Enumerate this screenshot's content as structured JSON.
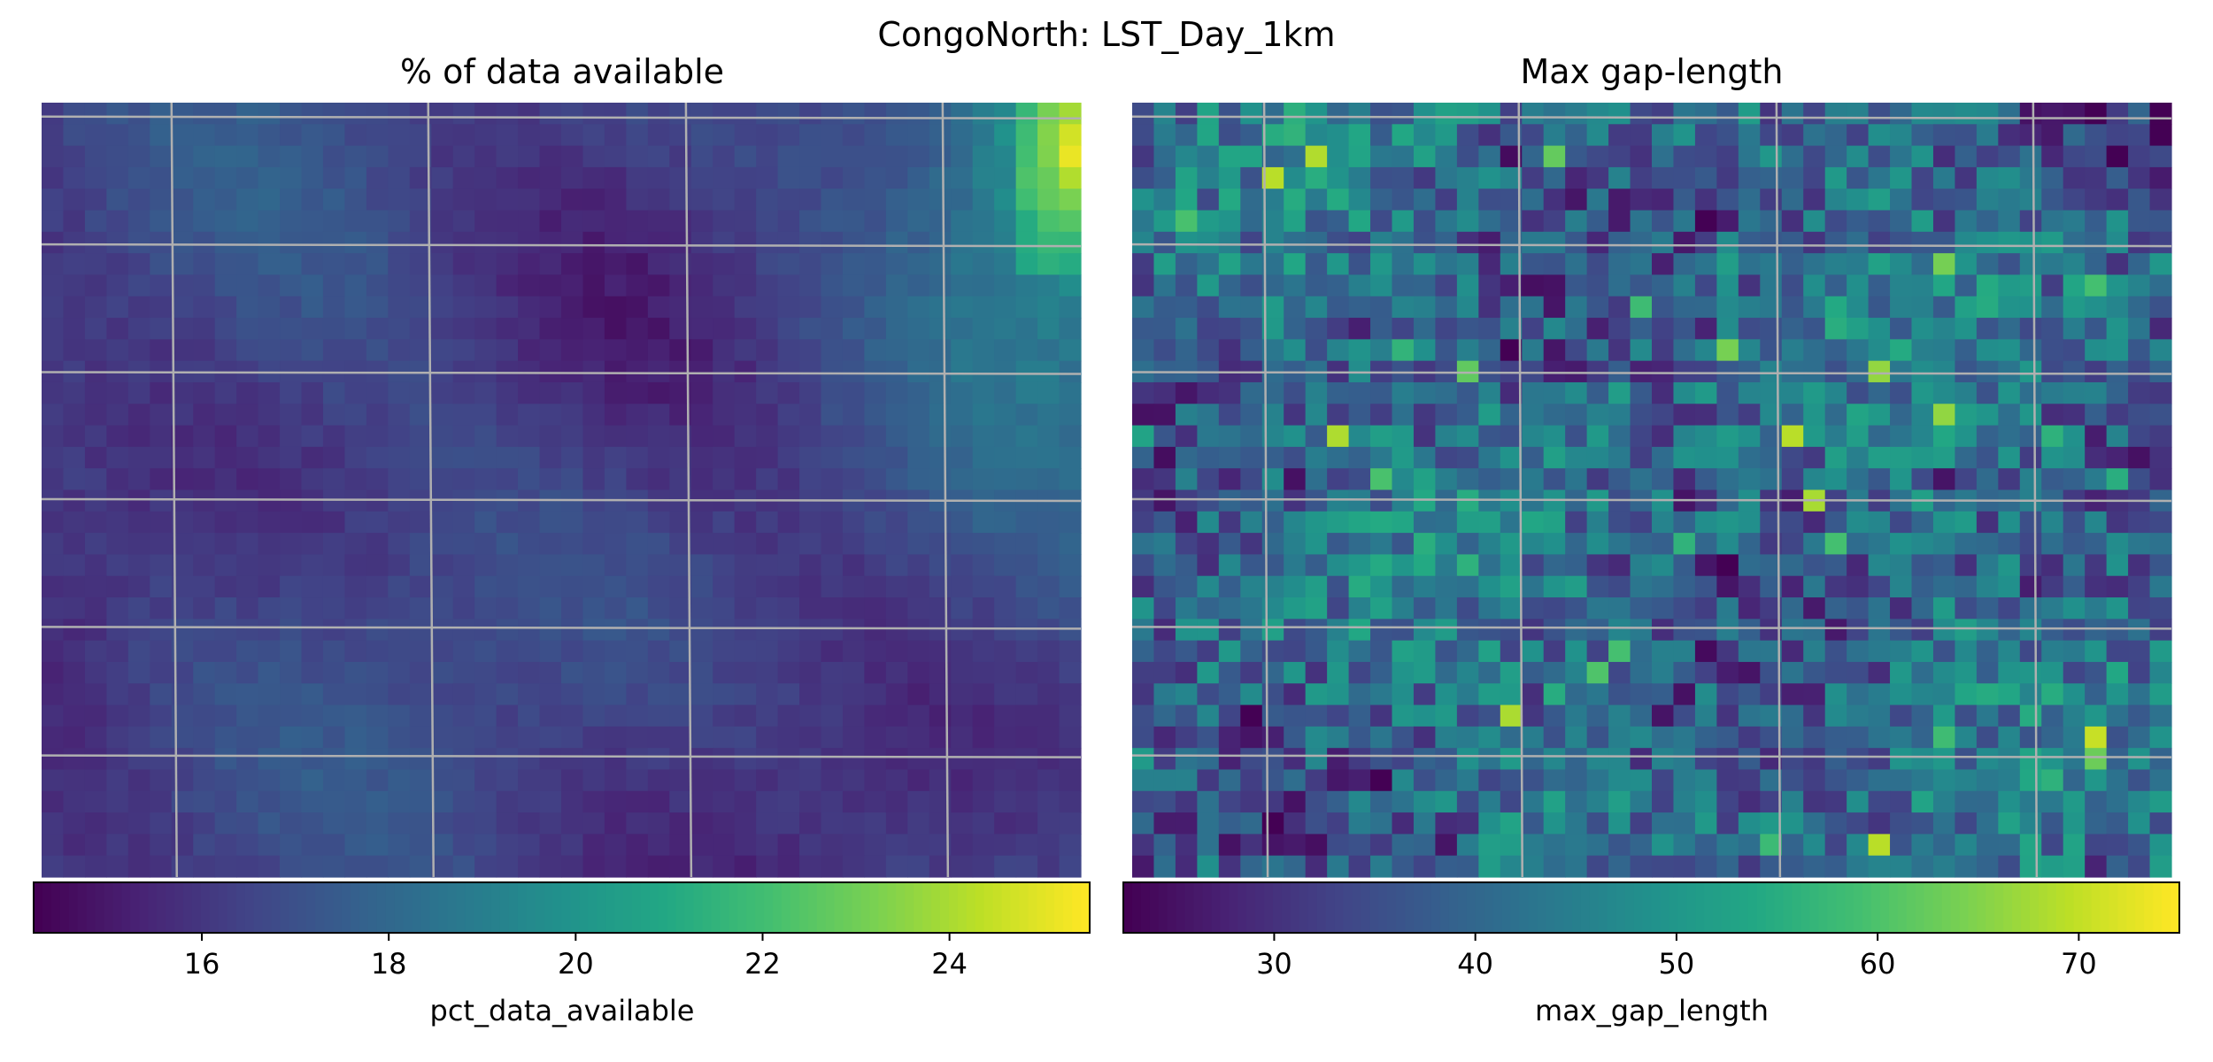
{
  "chart_data": {
    "suptitle": "CongoNorth: LST_Day_1km",
    "panels": [
      {
        "type": "heatmap",
        "title": "% of data available",
        "colorbar_label": "pct_data_available",
        "colormap": "viridis",
        "vmin": 14.2,
        "vmax": 25.5,
        "colorbar_ticks": [
          16,
          18,
          20,
          22,
          24
        ],
        "grid": true,
        "rows": 36,
        "cols": 48,
        "values_description_seed": 7
      },
      {
        "type": "heatmap",
        "title": "Max gap-length",
        "colorbar_label": "max_gap_length",
        "colormap": "viridis",
        "vmin": 22.5,
        "vmax": 75,
        "colorbar_ticks": [
          30,
          40,
          50,
          60,
          70
        ],
        "grid": true,
        "rows": 36,
        "cols": 48,
        "values_description_seed": 13
      }
    ]
  }
}
